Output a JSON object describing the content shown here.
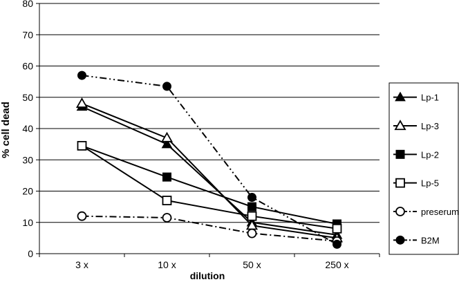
{
  "chart_data": {
    "type": "line",
    "categories": [
      "3 x",
      "10 x",
      "50 x",
      "250 x"
    ],
    "xlabel": "dilution",
    "ylabel": "% cell dead",
    "ylim": [
      0,
      80
    ],
    "yticks": [
      0,
      10,
      20,
      30,
      40,
      50,
      60,
      70,
      80
    ],
    "grid": true,
    "legend_position": "right",
    "series": [
      {
        "name": "Lp-1",
        "marker": "triangle-filled",
        "dash": "solid",
        "values": [
          47,
          35,
          10,
          6
        ]
      },
      {
        "name": "Lp-3",
        "marker": "triangle-open",
        "dash": "solid",
        "values": [
          48,
          37,
          9,
          5
        ]
      },
      {
        "name": "Lp-2",
        "marker": "square-filled",
        "dash": "solid",
        "values": [
          34.5,
          24.5,
          15,
          9.5
        ]
      },
      {
        "name": "Lp-5",
        "marker": "square-open",
        "dash": "solid",
        "values": [
          34.5,
          17,
          12,
          8
        ]
      },
      {
        "name": "preserum",
        "marker": "circle-open",
        "dash": "dashdot",
        "values": [
          12,
          11.5,
          6.5,
          4
        ]
      },
      {
        "name": "B2M",
        "marker": "circle-filled",
        "dash": "dashdotdot",
        "values": [
          57,
          53.5,
          18,
          3
        ]
      }
    ]
  }
}
